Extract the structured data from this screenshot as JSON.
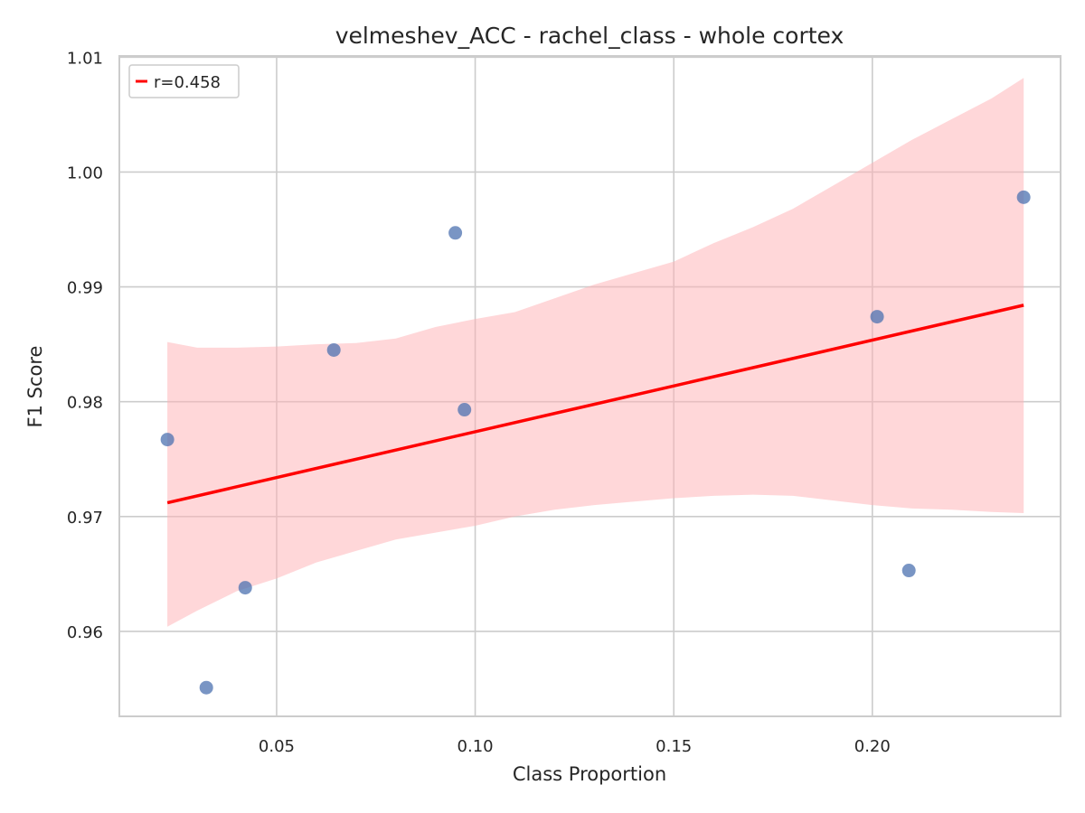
{
  "chart_data": {
    "type": "scatter",
    "title": "velmeshev_ACC - rachel_class - whole cortex",
    "xlabel": "Class Proportion",
    "ylabel": "F1 Score",
    "xlim": [
      0.0104,
      0.2474
    ],
    "ylim": [
      0.9526,
      1.0101
    ],
    "xticks": [
      0.05,
      0.1,
      0.15,
      0.2
    ],
    "xtick_labels": [
      "0.05",
      "0.10",
      "0.15",
      "0.20"
    ],
    "yticks": [
      0.96,
      0.97,
      0.98,
      0.99,
      1.0,
      1.01
    ],
    "ytick_labels": [
      "0.96",
      "0.97",
      "0.98",
      "0.99",
      "1.00",
      "1.01"
    ],
    "grid": true,
    "legend_position": "top-left",
    "points": {
      "color": "#4c72b0",
      "x": [
        0.0225,
        0.0323,
        0.0421,
        0.0644,
        0.095,
        0.0973,
        0.2012,
        0.2092,
        0.2381
      ],
      "y": [
        0.9767,
        0.9551,
        0.9638,
        0.9845,
        0.9947,
        0.9793,
        0.9874,
        0.9653,
        0.9978
      ]
    },
    "regression": {
      "label": "r=0.458",
      "color": "#ff0000",
      "x": [
        0.0225,
        0.2381
      ],
      "y": [
        0.9712,
        0.9884
      ]
    },
    "confidence_band": {
      "color": "#ffb0b4",
      "x": [
        0.0225,
        0.03,
        0.04,
        0.05,
        0.06,
        0.07,
        0.08,
        0.09,
        0.1,
        0.11,
        0.12,
        0.13,
        0.14,
        0.15,
        0.16,
        0.17,
        0.18,
        0.19,
        0.2,
        0.21,
        0.22,
        0.23,
        0.2381
      ],
      "upper": [
        0.9852,
        0.9847,
        0.9847,
        0.9848,
        0.985,
        0.9851,
        0.9855,
        0.9865,
        0.9872,
        0.9878,
        0.989,
        0.9902,
        0.9912,
        0.9922,
        0.9938,
        0.9952,
        0.9968,
        0.9988,
        1.0008,
        1.0028,
        1.0046,
        1.0064,
        1.0082
      ],
      "lower": [
        0.9604,
        0.9618,
        0.9635,
        0.9646,
        0.966,
        0.967,
        0.968,
        0.9686,
        0.9692,
        0.97,
        0.9706,
        0.971,
        0.9713,
        0.9716,
        0.9718,
        0.9719,
        0.9718,
        0.9714,
        0.971,
        0.9707,
        0.9706,
        0.9704,
        0.9703
      ]
    }
  }
}
